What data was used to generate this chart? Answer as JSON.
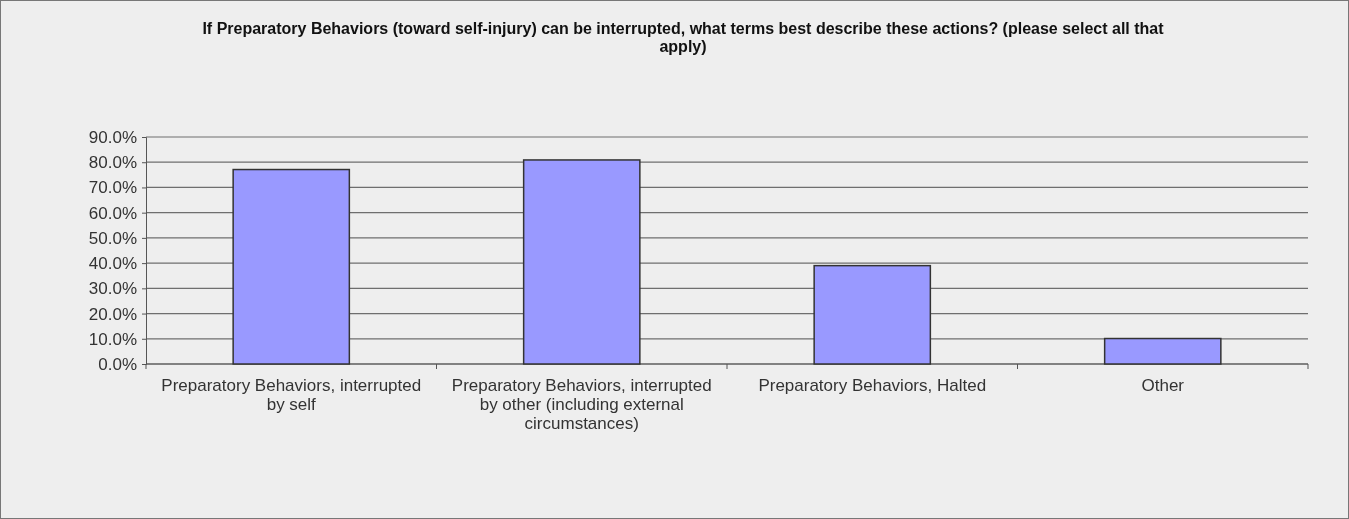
{
  "chart_data": {
    "type": "bar",
    "title": "If Preparatory Behaviors (toward self-injury) can be interrupted, what terms best describe these actions? (please select all that apply)",
    "categories": [
      "Preparatory Behaviors, interrupted by self",
      "Preparatory Behaviors, interrupted by other (including external circumstances)",
      "Preparatory Behaviors, Halted",
      "Other"
    ],
    "values": [
      77.1,
      80.9,
      39.0,
      10.1
    ],
    "color": "#9999ff",
    "ylim": [
      0,
      90
    ],
    "yticks": [
      {
        "value": 0,
        "label": "0.0%"
      },
      {
        "value": 10,
        "label": "10.0%"
      },
      {
        "value": 20,
        "label": "20.0%"
      },
      {
        "value": 30,
        "label": "30.0%"
      },
      {
        "value": 40,
        "label": "40.0%"
      },
      {
        "value": 50,
        "label": "50.0%"
      },
      {
        "value": 60,
        "label": "60.0%"
      },
      {
        "value": 70,
        "label": "70.0%"
      },
      {
        "value": 80,
        "label": "80.0%"
      },
      {
        "value": 90,
        "label": "90.0%"
      }
    ],
    "grid": "y"
  }
}
